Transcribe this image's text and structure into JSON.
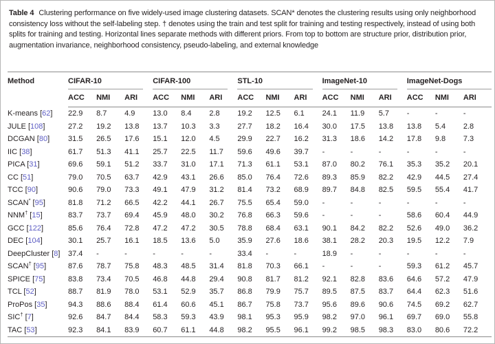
{
  "caption": {
    "label": "Table 4",
    "text": "Clustering performance on five widely-used image clustering datasets. SCAN* denotes the clustering results using only neighborhood consistency loss without the self-labeling step. † denotes using the train and test split for training and testing respectively, instead of using both splits for training and testing. Horizontal lines separate methods with different priors. From top to bottom are structure prior, distribution prior, augmentation invariance, neighborhood consistency, pseudo-labeling, and external knowledge"
  },
  "table": {
    "method_header": "Method",
    "datasets": [
      "CIFAR-10",
      "CIFAR-100",
      "STL-10",
      "ImageNet-10",
      "ImageNet-Dogs"
    ],
    "metric_headers": [
      "ACC",
      "NMI",
      "ARI"
    ],
    "rows": [
      {
        "method": "K-means",
        "sup": "",
        "cite": "62",
        "values": [
          "22.9",
          "8.7",
          "4.9",
          "13.0",
          "8.4",
          "2.8",
          "19.2",
          "12.5",
          "6.1",
          "24.1",
          "11.9",
          "5.7",
          "-",
          "-",
          "-"
        ]
      },
      {
        "method": "JULE",
        "sup": "",
        "cite": "108",
        "values": [
          "27.2",
          "19.2",
          "13.8",
          "13.7",
          "10.3",
          "3.3",
          "27.7",
          "18.2",
          "16.4",
          "30.0",
          "17.5",
          "13.8",
          "13.8",
          "5.4",
          "2.8"
        ]
      },
      {
        "method": "DCGAN",
        "sup": "",
        "cite": "80",
        "values": [
          "31.5",
          "26.5",
          "17.6",
          "15.1",
          "12.0",
          "4.5",
          "29.9",
          "22.7",
          "16.2",
          "31.3",
          "18.6",
          "14.2",
          "17.8",
          "9.8",
          "7.3"
        ]
      },
      {
        "method": "IIC",
        "sup": "",
        "cite": "38",
        "values": [
          "61.7",
          "51.3",
          "41.1",
          "25.7",
          "22.5",
          "11.7",
          "59.6",
          "49.6",
          "39.7",
          "-",
          "-",
          "-",
          "-",
          "-",
          "-"
        ]
      },
      {
        "method": "PICA",
        "sup": "",
        "cite": "31",
        "values": [
          "69.6",
          "59.1",
          "51.2",
          "33.7",
          "31.0",
          "17.1",
          "71.3",
          "61.1",
          "53.1",
          "87.0",
          "80.2",
          "76.1",
          "35.3",
          "35.2",
          "20.1"
        ]
      },
      {
        "method": "CC",
        "sup": "",
        "cite": "51",
        "values": [
          "79.0",
          "70.5",
          "63.7",
          "42.9",
          "43.1",
          "26.6",
          "85.0",
          "76.4",
          "72.6",
          "89.3",
          "85.9",
          "82.2",
          "42.9",
          "44.5",
          "27.4"
        ]
      },
      {
        "method": "TCC",
        "sup": "",
        "cite": "90",
        "values": [
          "90.6",
          "79.0",
          "73.3",
          "49.1",
          "47.9",
          "31.2",
          "81.4",
          "73.2",
          "68.9",
          "89.7",
          "84.8",
          "82.5",
          "59.5",
          "55.4",
          "41.7"
        ]
      },
      {
        "method": "SCAN",
        "sup": "*",
        "cite": "95",
        "values": [
          "81.8",
          "71.2",
          "66.5",
          "42.2",
          "44.1",
          "26.7",
          "75.5",
          "65.4",
          "59.0",
          "-",
          "-",
          "-",
          "-",
          "-",
          "-"
        ]
      },
      {
        "method": "NNM",
        "sup": "†",
        "cite": "15",
        "values": [
          "83.7",
          "73.7",
          "69.4",
          "45.9",
          "48.0",
          "30.2",
          "76.8",
          "66.3",
          "59.6",
          "-",
          "-",
          "-",
          "58.6",
          "60.4",
          "44.9"
        ]
      },
      {
        "method": "GCC",
        "sup": "",
        "cite": "122",
        "values": [
          "85.6",
          "76.4",
          "72.8",
          "47.2",
          "47.2",
          "30.5",
          "78.8",
          "68.4",
          "63.1",
          "90.1",
          "84.2",
          "82.2",
          "52.6",
          "49.0",
          "36.2"
        ]
      },
      {
        "method": "DEC",
        "sup": "",
        "cite": "104",
        "values": [
          "30.1",
          "25.7",
          "16.1",
          "18.5",
          "13.6",
          "5.0",
          "35.9",
          "27.6",
          "18.6",
          "38.1",
          "28.2",
          "20.3",
          "19.5",
          "12.2",
          "7.9"
        ]
      },
      {
        "method": "DeepCluster",
        "sup": "",
        "cite": "8",
        "values": [
          "37.4",
          "-",
          "-",
          "-",
          "-",
          "-",
          "33.4",
          "-",
          "-",
          "18.9",
          "-",
          "-",
          "-",
          "-",
          "-"
        ]
      },
      {
        "method": "SCAN",
        "sup": "†",
        "cite": "95",
        "values": [
          "87.6",
          "78.7",
          "75.8",
          "48.3",
          "48.5",
          "31.4",
          "81.8",
          "70.3",
          "66.1",
          "-",
          "-",
          "-",
          "59.3",
          "61.2",
          "45.7"
        ]
      },
      {
        "method": "SPICE",
        "sup": "",
        "cite": "75",
        "values": [
          "83.8",
          "73.4",
          "70.5",
          "46.8",
          "44.8",
          "29.4",
          "90.8",
          "81.7",
          "81.2",
          "92.1",
          "82.8",
          "83.6",
          "64.6",
          "57.2",
          "47.9"
        ]
      },
      {
        "method": "TCL",
        "sup": "",
        "cite": "52",
        "values": [
          "88.7",
          "81.9",
          "78.0",
          "53.1",
          "52.9",
          "35.7",
          "86.8",
          "79.9",
          "75.7",
          "89.5",
          "87.5",
          "83.7",
          "64.4",
          "62.3",
          "51.6"
        ]
      },
      {
        "method": "ProPos",
        "sup": "",
        "cite": "35",
        "values": [
          "94.3",
          "88.6",
          "88.4",
          "61.4",
          "60.6",
          "45.1",
          "86.7",
          "75.8",
          "73.7",
          "95.6",
          "89.6",
          "90.6",
          "74.5",
          "69.2",
          "62.7"
        ]
      },
      {
        "method": "SIC",
        "sup": "†",
        "cite": "7",
        "values": [
          "92.6",
          "84.7",
          "84.4",
          "58.3",
          "59.3",
          "43.9",
          "98.1",
          "95.3",
          "95.9",
          "98.2",
          "97.0",
          "96.1",
          "69.7",
          "69.0",
          "55.8"
        ]
      },
      {
        "method": "TAC",
        "sup": "",
        "cite": "53",
        "values": [
          "92.3",
          "84.1",
          "83.9",
          "60.7",
          "61.1",
          "44.8",
          "98.2",
          "95.5",
          "96.1",
          "99.2",
          "98.5",
          "98.3",
          "83.0",
          "80.6",
          "72.2"
        ]
      }
    ]
  },
  "colors": {
    "text": "#231f20",
    "citation_link": "#5e5ec4",
    "rule": "#8b8b8b",
    "group_underline": "#9e9e9e",
    "frame_border": "#b5b5b5"
  }
}
